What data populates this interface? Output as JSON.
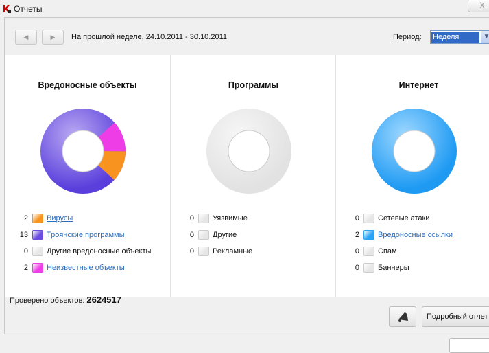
{
  "window": {
    "title": "Отчеты",
    "close_label": "X"
  },
  "header": {
    "date_range": "На прошлой неделе, 24.10.2011 - 30.10.2011",
    "period_label": "Период:",
    "period_value": "Неделя"
  },
  "columns": [
    {
      "title": "Вредоносные объекты",
      "items": [
        {
          "count": "2",
          "label": "Вирусы",
          "color": "#f7931e",
          "link": true
        },
        {
          "count": "13",
          "label": "Троянские программы",
          "color": "#6a4ce0",
          "link": true
        },
        {
          "count": "0",
          "label": "Другие вредоносные объекты",
          "color": "#e6e6e6",
          "link": false
        },
        {
          "count": "2",
          "label": "Неизвестные объекты",
          "color": "#ee3de6",
          "link": true
        }
      ]
    },
    {
      "title": "Программы",
      "items": [
        {
          "count": "0",
          "label": "Уязвимые",
          "color": "#e6e6e6",
          "link": false
        },
        {
          "count": "0",
          "label": "Другие",
          "color": "#e6e6e6",
          "link": false
        },
        {
          "count": "0",
          "label": "Рекламные",
          "color": "#e6e6e6",
          "link": false
        }
      ]
    },
    {
      "title": "Интернет",
      "items": [
        {
          "count": "0",
          "label": "Сетевые атаки",
          "color": "#e6e6e6",
          "link": false
        },
        {
          "count": "2",
          "label": "Вредоносные ссылки",
          "color": "#2aa3f5",
          "link": true
        },
        {
          "count": "0",
          "label": "Спам",
          "color": "#e6e6e6",
          "link": false
        },
        {
          "count": "0",
          "label": "Баннеры",
          "color": "#e6e6e6",
          "link": false
        }
      ]
    }
  ],
  "footer": {
    "checked_label": "Проверено объектов:",
    "checked_value": "2624517",
    "detail_button": "Подробный отчет"
  }
}
